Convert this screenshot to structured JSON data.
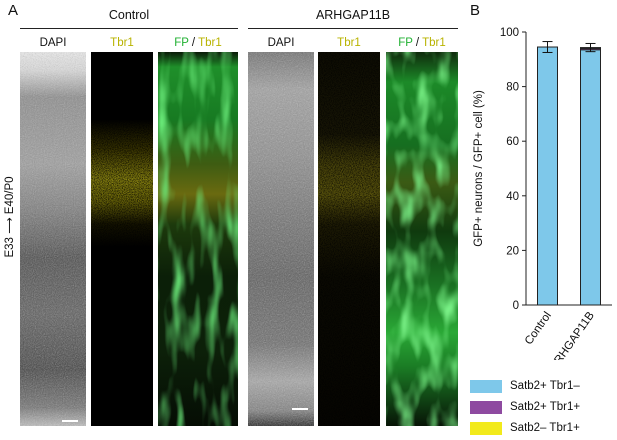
{
  "panels": {
    "a_letter": "A",
    "b_letter": "B"
  },
  "groups": {
    "control": "Control",
    "arhgap": "ARHGAP11B"
  },
  "columns": {
    "dapi": "DAPI",
    "tbr1": "Tbr1",
    "fp": "FP",
    "slash": " / ",
    "tbr1_merge": "Tbr1"
  },
  "side_label": "E33 ⟶ E40/P0",
  "colors": {
    "dapi": "#d8d8d8",
    "tbr1": "#c9c417",
    "fp": "#27c43a",
    "satb2_tbr1neg": "#7ec8ea",
    "satb2_tbr1pos": "#8e4aa0",
    "satb2neg_tbr1pos": "#f2ea1c"
  },
  "chart_data": {
    "type": "bar",
    "stacked": true,
    "categories": [
      "Control",
      "ARHGAP11B"
    ],
    "series": [
      {
        "name": "Satb2+ Tbr1–",
        "values": [
          94.5,
          93.5
        ],
        "color": "#7ec8ea"
      },
      {
        "name": "Satb2+ Tbr1+",
        "values": [
          0,
          0.5
        ],
        "color": "#8e4aa0"
      },
      {
        "name": "Satb2– Tbr1+",
        "values": [
          0,
          0.3
        ],
        "color": "#f2ea1c"
      }
    ],
    "error": [
      2,
      1.5
    ],
    "ylabel": "GFP+ neurons / GFP+ cell (%)",
    "ylim": [
      0,
      100
    ],
    "yticks": [
      "0",
      "20",
      "40",
      "60",
      "80",
      "100"
    ],
    "legend_position": "bottom"
  }
}
